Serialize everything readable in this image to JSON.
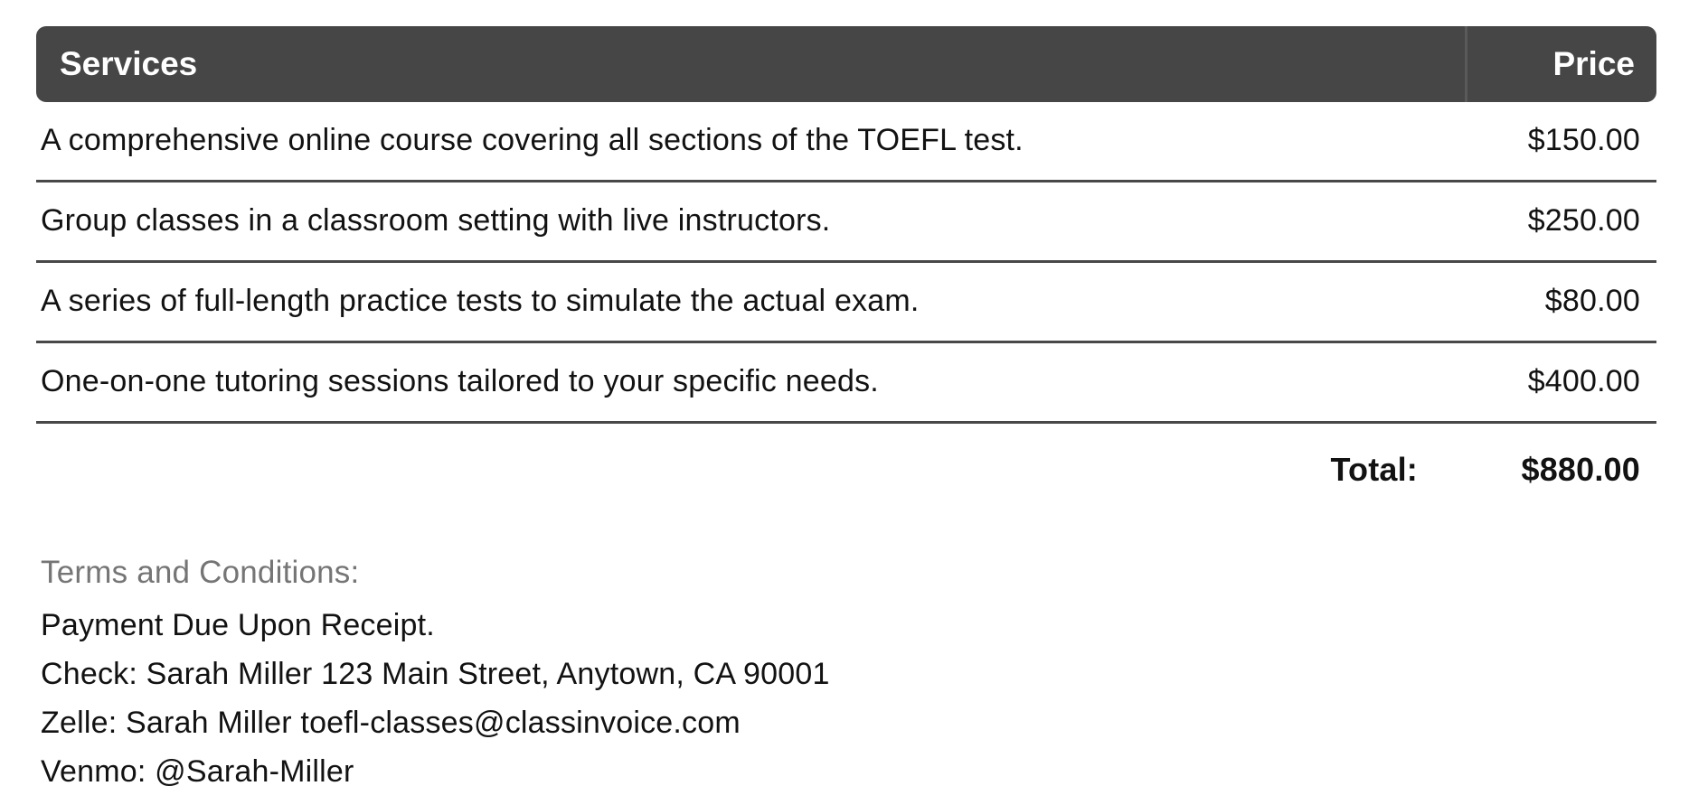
{
  "table": {
    "header": {
      "services": "Services",
      "price": "Price"
    },
    "rows": [
      {
        "service": "A comprehensive online course covering all sections of the TOEFL test.",
        "price": "$150.00"
      },
      {
        "service": "Group classes in a classroom setting with live instructors.",
        "price": "$250.00"
      },
      {
        "service": "A series of full-length practice tests to simulate the actual exam.",
        "price": "$80.00"
      },
      {
        "service": "One-on-one tutoring sessions tailored to your specific needs.",
        "price": "$400.00"
      }
    ],
    "total_label": "Total:",
    "total_value": "$880.00"
  },
  "terms": {
    "heading": "Terms and Conditions:",
    "lines": [
      "Payment Due Upon Receipt.",
      "Check: Sarah Miller 123 Main Street, Anytown, CA 90001",
      "Zelle: Sarah Miller toefl-classes@classinvoice.com",
      "Venmo: @Sarah-Miller"
    ]
  },
  "colors": {
    "header_bg": "#464646",
    "header_text": "#ffffff",
    "header_divider": "#5a5a5a",
    "row_border": "#484848",
    "text": "#121212",
    "terms_heading": "#757575",
    "page_bg": "#ffffff"
  }
}
